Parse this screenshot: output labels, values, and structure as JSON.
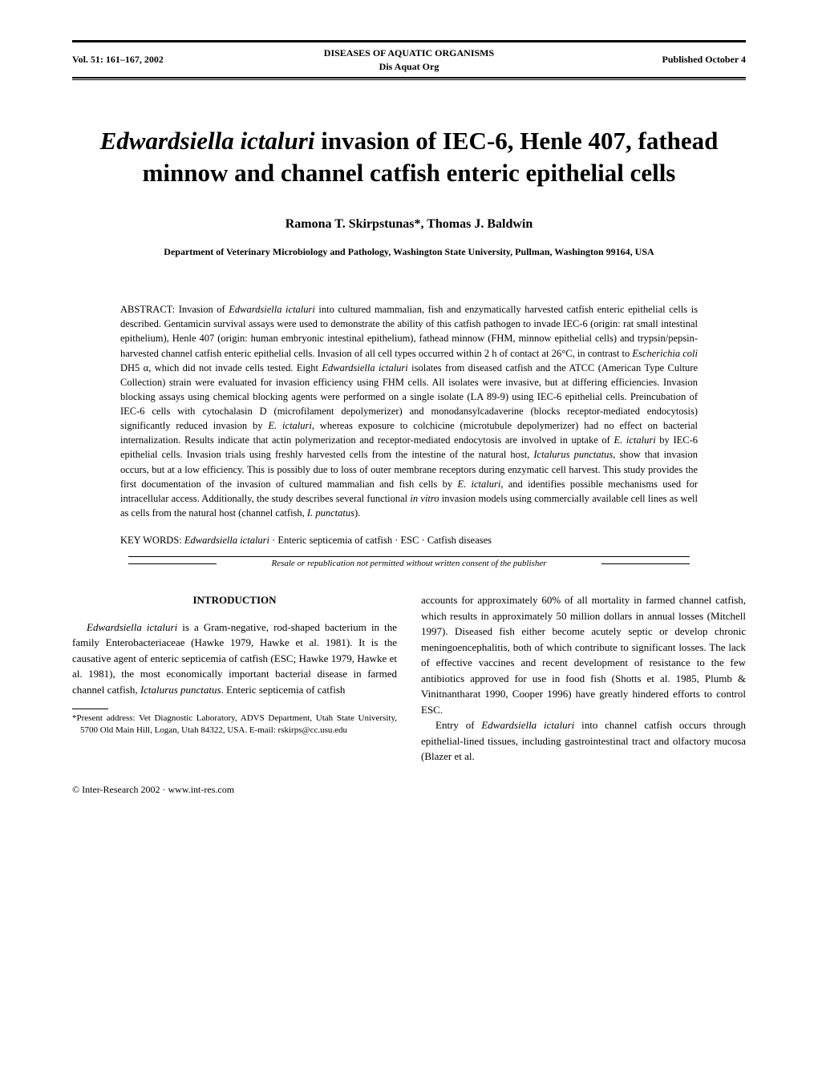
{
  "header": {
    "volume": "Vol. 51: 161–167, 2002",
    "journal_line1": "DISEASES OF AQUATIC ORGANISMS",
    "journal_line2": "Dis Aquat Org",
    "pub_date": "Published October 4"
  },
  "title": {
    "part1_italic": "Edwardsiella ictaluri",
    "part1_rest": " invasion of IEC-6, Henle 407, fathead minnow and channel catfish enteric epithelial cells"
  },
  "authors": "Ramona T. Skirpstunas*, Thomas J. Baldwin",
  "affiliation": "Department of Veterinary Microbiology and Pathology, Washington State University, Pullman, Washington 99164, USA",
  "abstract": {
    "label": "ABSTRACT: ",
    "body_pre": "Invasion of ",
    "sp1": "Edwardsiella ictaluri",
    "body_1": " into cultured mammalian, fish and enzymatically harvested catfish enteric epithelial cells is described. Gentamicin survival assays were used to demonstrate the ability of this catfish pathogen to invade IEC-6 (origin: rat small intestinal epithelium), Henle 407 (origin: human embryonic intestinal epithelium), fathead minnow (FHM, minnow epithelial cells) and trypsin/pepsin-harvested channel catfish enteric epithelial cells. Invasion of all cell types occurred within 2 h of contact at 26°C, in contrast to ",
    "sp2": "Escherichia coli",
    "body_2": " DH5 α, which did not invade cells tested. Eight ",
    "sp3": "Edwardsiella ictaluri",
    "body_3": " isolates from diseased catfish and the ATCC (American Type Culture Collection) strain were evaluated for invasion efficiency using FHM cells. All isolates were invasive, but at differing efficiencies. Invasion blocking assays using chemical blocking agents were performed on a single isolate (LA 89-9) using IEC-6 epithelial cells. Preincubation of IEC-6 cells with cytochalasin D (microfilament depolymerizer) and monodansylcadaverine (blocks receptor-mediated endocytosis) significantly reduced invasion by ",
    "sp4": "E. ictaluri",
    "body_4": ", whereas exposure to colchicine (microtubule depolymerizer) had no effect on bacterial internalization. Results indicate that actin polymerization and receptor-mediated endocytosis are involved in uptake of ",
    "sp5": "E. ictaluri",
    "body_5": " by IEC-6 epithelial cells. Invasion trials using freshly harvested cells from the intestine of the natural host, ",
    "sp6": "Ictalurus punctatus",
    "body_6": ", show that invasion occurs, but at a low efficiency. This is possibly due to loss of outer membrane receptors during enzymatic cell harvest. This study provides the first documentation of the invasion of cultured mammalian and fish cells by ",
    "sp7": "E. ictaluri",
    "body_7": ", and identifies possible mechanisms used for intracellular access. Additionally, the study describes several functional ",
    "sp8": "in vitro",
    "body_8": " invasion models using commercially available cell lines as well as cells from the natural host (channel catfish, ",
    "sp9": "I. punctatus",
    "body_9": ")."
  },
  "keywords": {
    "label": "KEY WORDS:  ",
    "k1": "Edwardsiella ictaluri",
    "rest": " · Enteric septicemia of catfish · ESC · Catfish diseases"
  },
  "resale_note": "Resale or republication not permitted without written consent of the publisher",
  "section_heading": "INTRODUCTION",
  "col1": {
    "p1_a": "Edwardsiella ictaluri",
    "p1_b": " is a Gram-negative, rod-shaped bacterium in the family Enterobacteriaceae (Hawke 1979, Hawke et al. 1981). It is the causative agent of enteric septicemia of catfish (ESC; Hawke 1979, Hawke et al. 1981), the most economically important bacterial disease in farmed channel catfish, ",
    "p1_c": "Ictalurus punctatus",
    "p1_d": ". Enteric septicemia of catfish"
  },
  "footnote": {
    "text": "*Present address: Vet Diagnostic Laboratory, ADVS Department, Utah State University, 5700 Old Main Hill, Logan, Utah 84322, USA. E-mail: rskirps@cc.usu.edu"
  },
  "col2": {
    "p1": "accounts for approximately 60% of all mortality in farmed channel catfish, which results in approximately 50 million dollars in annual losses (Mitchell 1997). Diseased fish either become acutely septic or develop chronic meningoencephalitis, both of which contribute to significant losses. The lack of effective vaccines and recent development of resistance to the few antibiotics approved for use in food fish (Shotts et al. 1985, Plumb & Vinitnantharat 1990, Cooper 1996) have greatly hindered efforts to control ESC.",
    "p2_a": "Entry of ",
    "p2_b": "Edwardsiella ictaluri",
    "p2_c": " into channel catfish occurs through epithelial-lined tissues, including gastrointestinal tract and olfactory mucosa (Blazer et al."
  },
  "footer": {
    "left": "© Inter-Research 2002 · www.int-res.com"
  }
}
